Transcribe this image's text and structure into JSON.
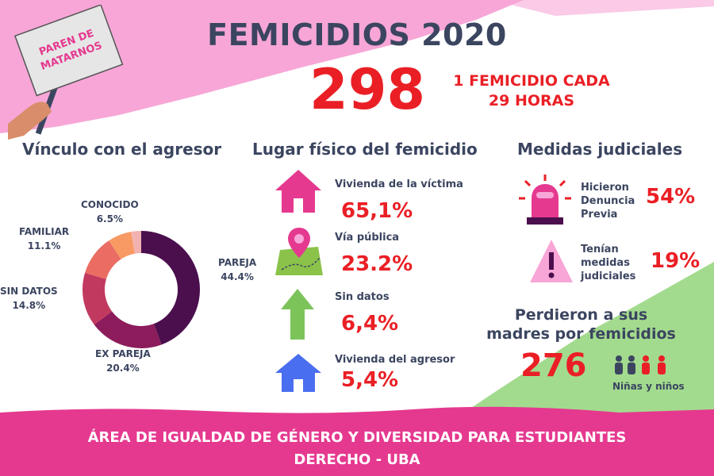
{
  "poster": {
    "sign_text_line1": "PAREN DE",
    "sign_text_line2": "MATARNOS",
    "title": "FEMICIDIOS 2020",
    "total": "298",
    "total_caption_line1": "1 FEMICIDIO CADA",
    "total_caption_line2": "29 HORAS",
    "colors": {
      "pink": "#f7a6d7",
      "magenta": "#e5398f",
      "red": "#ea1f25",
      "navy": "#3b4560",
      "green": "#a3db8e"
    }
  },
  "vinculo": {
    "title": "Vínculo con el agresor",
    "labels": [
      {
        "name": "PAREJA",
        "pct": "44.4%"
      },
      {
        "name": "EX PAREJA",
        "pct": "20.4%"
      },
      {
        "name": "SIN DATOS",
        "pct": "14.8%"
      },
      {
        "name": "FAMILIAR",
        "pct": "11.1%"
      },
      {
        "name": "CONOCIDO",
        "pct": "6.5%"
      }
    ]
  },
  "lugar": {
    "title": "Lugar físico del femicidio",
    "items": [
      {
        "label": "Vivienda de la víctima",
        "value": "65,1%",
        "icon": "house-icon"
      },
      {
        "label": "Vía pública",
        "value": "23.2%",
        "icon": "map-pin-icon"
      },
      {
        "label": "Sin datos",
        "value": "6,4%",
        "icon": "arrow-up-icon"
      },
      {
        "label": "Vivienda del agresor",
        "value": "5,4%",
        "icon": "house-icon"
      }
    ]
  },
  "judiciales": {
    "title": "Medidas judiciales",
    "items": [
      {
        "line1": "Hicieron",
        "line2": "Denuncia",
        "line3": "Previa",
        "value": "54%",
        "icon": "siren-icon"
      },
      {
        "line1": "Tenían",
        "line2": "medidas",
        "line3": "judiciales",
        "value": "19%",
        "icon": "warning-icon"
      }
    ]
  },
  "huerfanos": {
    "title_line1": "Perdieron a sus",
    "title_line2": "madres por femicidios",
    "count": "276",
    "caption": "Niñas y niños"
  },
  "footer": {
    "line1": "ÁREA DE IGUALDAD DE GÉNERO Y DIVERSIDAD PARA ESTUDIANTES",
    "line2": "DERECHO - UBA"
  },
  "chart_data": [
    {
      "type": "pie",
      "title": "Vínculo con el agresor",
      "categories": [
        "PAREJA",
        "EX PAREJA",
        "SIN DATOS",
        "FAMILIAR",
        "CONOCIDO",
        ""
      ],
      "values": [
        44.4,
        20.4,
        14.8,
        11.1,
        6.5,
        2.8
      ],
      "colors": [
        "#4b0f4d",
        "#8c1c5c",
        "#c2395f",
        "#eb6c63",
        "#f79a63",
        "#f2b3b0"
      ],
      "donut": true
    },
    {
      "type": "table",
      "title": "Lugar físico del femicidio",
      "categories": [
        "Vivienda de la víctima",
        "Vía pública",
        "Sin datos",
        "Vivienda del agresor"
      ],
      "values": [
        65.1,
        23.2,
        6.4,
        5.4
      ]
    },
    {
      "type": "table",
      "title": "Medidas judiciales",
      "categories": [
        "Hicieron Denuncia Previa",
        "Tenían medidas judiciales"
      ],
      "values": [
        54,
        19
      ]
    }
  ]
}
